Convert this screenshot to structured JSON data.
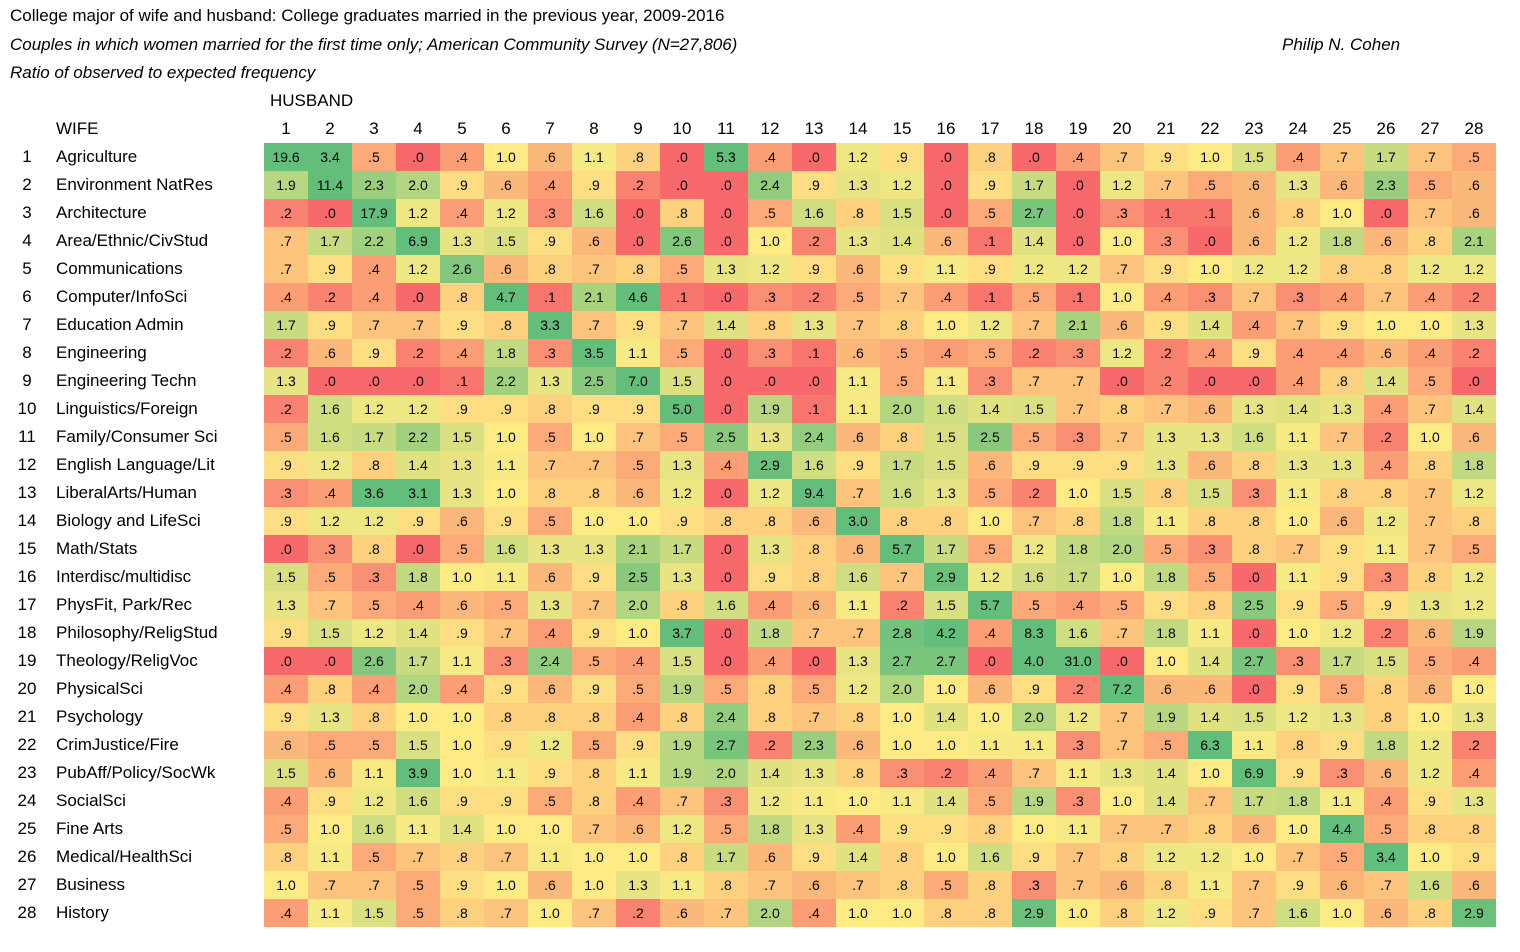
{
  "header": {
    "title": "College major of wife and husband: College graduates married in the previous year, 2009-2016",
    "subtitle": "Couples in which women married for the first time only; American Community Survey (N=27,806)",
    "subtitle2": "Ratio of observed to expected frequency",
    "author": "Philip N. Cohen"
  },
  "chart_data": {
    "type": "heatmap",
    "column_axis_label": "HUSBAND",
    "row_axis_label": "WIFE",
    "columns": [
      "1",
      "2",
      "3",
      "4",
      "5",
      "6",
      "7",
      "8",
      "9",
      "10",
      "11",
      "12",
      "13",
      "14",
      "15",
      "16",
      "17",
      "18",
      "19",
      "20",
      "21",
      "22",
      "23",
      "24",
      "25",
      "26",
      "27",
      "28"
    ],
    "row_numbers": [
      "1",
      "2",
      "3",
      "4",
      "5",
      "6",
      "7",
      "8",
      "9",
      "10",
      "11",
      "12",
      "13",
      "14",
      "15",
      "16",
      "17",
      "18",
      "19",
      "20",
      "21",
      "22",
      "23",
      "24",
      "25",
      "26",
      "27",
      "28"
    ],
    "rows": [
      "Agriculture",
      "Environment NatRes",
      "Architecture",
      "Area/Ethnic/CivStud",
      "Communications",
      "Computer/InfoSci",
      "Education Admin",
      "Engineering",
      "Engineering Techn",
      "Linguistics/Foreign",
      "Family/Consumer Sci",
      "English Language/Lit",
      "LiberalArts/Human",
      "Biology and LifeSci",
      "Math/Stats",
      "Interdisc/multidisc",
      "PhysFit, Park/Rec",
      "Philosophy/ReligStud",
      "Theology/ReligVoc",
      "PhysicalSci",
      "Psychology",
      "CrimJustice/Fire",
      "PubAff/Policy/SocWk",
      "SocialSci",
      "Fine Arts",
      "Medical/HealthSci",
      "Business",
      "History"
    ],
    "values": [
      [
        "19.6",
        "3.4",
        ".5",
        ".0",
        ".4",
        "1.0",
        ".6",
        "1.1",
        ".8",
        ".0",
        "5.3",
        ".4",
        ".0",
        "1.2",
        ".9",
        ".0",
        ".8",
        ".0",
        ".4",
        ".7",
        ".9",
        "1.0",
        "1.5",
        ".4",
        ".7",
        "1.7",
        ".7",
        ".5"
      ],
      [
        "1.9",
        "11.4",
        "2.3",
        "2.0",
        ".9",
        ".6",
        ".4",
        ".9",
        ".2",
        ".0",
        ".0",
        "2.4",
        ".9",
        "1.3",
        "1.2",
        ".0",
        ".9",
        "1.7",
        ".0",
        "1.2",
        ".7",
        ".5",
        ".6",
        "1.3",
        ".6",
        "2.3",
        ".5",
        ".6"
      ],
      [
        ".2",
        ".0",
        "17.9",
        "1.2",
        ".4",
        "1.2",
        ".3",
        "1.6",
        ".0",
        ".8",
        ".0",
        ".5",
        "1.6",
        ".8",
        "1.5",
        ".0",
        ".5",
        "2.7",
        ".0",
        ".3",
        ".1",
        ".1",
        ".6",
        ".8",
        "1.0",
        ".0",
        ".7",
        ".6"
      ],
      [
        ".7",
        "1.7",
        "2.2",
        "6.9",
        "1.3",
        "1.5",
        ".9",
        ".6",
        ".0",
        "2.6",
        ".0",
        "1.0",
        ".2",
        "1.3",
        "1.4",
        ".6",
        ".1",
        "1.4",
        ".0",
        "1.0",
        ".3",
        ".0",
        ".6",
        "1.2",
        "1.8",
        ".6",
        ".8",
        "2.1"
      ],
      [
        ".7",
        ".9",
        ".4",
        "1.2",
        "2.6",
        ".6",
        ".8",
        ".7",
        ".8",
        ".5",
        "1.3",
        "1.2",
        ".9",
        ".6",
        ".9",
        "1.1",
        ".9",
        "1.2",
        "1.2",
        ".7",
        ".9",
        "1.0",
        "1.2",
        "1.2",
        ".8",
        ".8",
        "1.2",
        "1.2"
      ],
      [
        ".4",
        ".2",
        ".4",
        ".0",
        ".8",
        "4.7",
        ".1",
        "2.1",
        "4.6",
        ".1",
        ".0",
        ".3",
        ".2",
        ".5",
        ".7",
        ".4",
        ".1",
        ".5",
        ".1",
        "1.0",
        ".4",
        ".3",
        ".7",
        ".3",
        ".4",
        ".7",
        ".4",
        ".2"
      ],
      [
        "1.7",
        ".9",
        ".7",
        ".7",
        ".9",
        ".8",
        "3.3",
        ".7",
        ".9",
        ".7",
        "1.4",
        ".8",
        "1.3",
        ".7",
        ".8",
        "1.0",
        "1.2",
        ".7",
        "2.1",
        ".6",
        ".9",
        "1.4",
        ".4",
        ".7",
        ".9",
        "1.0",
        "1.0",
        "1.3"
      ],
      [
        ".2",
        ".6",
        ".9",
        ".2",
        ".4",
        "1.8",
        ".3",
        "3.5",
        "1.1",
        ".5",
        ".0",
        ".3",
        ".1",
        ".6",
        ".5",
        ".4",
        ".5",
        ".2",
        ".3",
        "1.2",
        ".2",
        ".4",
        ".9",
        ".4",
        ".4",
        ".6",
        ".4",
        ".2"
      ],
      [
        "1.3",
        ".0",
        ".0",
        ".0",
        ".1",
        "2.2",
        "1.3",
        "2.5",
        "7.0",
        "1.5",
        ".0",
        ".0",
        ".0",
        "1.1",
        ".5",
        "1.1",
        ".3",
        ".7",
        ".7",
        ".0",
        ".2",
        ".0",
        ".0",
        ".4",
        ".8",
        "1.4",
        ".5",
        ".0"
      ],
      [
        ".2",
        "1.6",
        "1.2",
        "1.2",
        ".9",
        ".9",
        ".8",
        ".9",
        ".9",
        "5.0",
        ".0",
        "1.9",
        ".1",
        "1.1",
        "2.0",
        "1.6",
        "1.4",
        "1.5",
        ".7",
        ".8",
        ".7",
        ".6",
        "1.3",
        "1.4",
        "1.3",
        ".4",
        ".7",
        "1.4"
      ],
      [
        ".5",
        "1.6",
        "1.7",
        "2.2",
        "1.5",
        "1.0",
        ".5",
        "1.0",
        ".7",
        ".5",
        "2.5",
        "1.3",
        "2.4",
        ".6",
        ".8",
        "1.5",
        "2.5",
        ".5",
        ".3",
        ".7",
        "1.3",
        "1.3",
        "1.6",
        "1.1",
        ".7",
        ".2",
        "1.0",
        ".6"
      ],
      [
        ".9",
        "1.2",
        ".8",
        "1.4",
        "1.3",
        "1.1",
        ".7",
        ".7",
        ".5",
        "1.3",
        ".4",
        "2.9",
        "1.6",
        ".9",
        "1.7",
        "1.5",
        ".6",
        ".9",
        ".9",
        ".9",
        "1.3",
        ".6",
        ".8",
        "1.3",
        "1.3",
        ".4",
        ".8",
        "1.8"
      ],
      [
        ".3",
        ".4",
        "3.6",
        "3.1",
        "1.3",
        "1.0",
        ".8",
        ".8",
        ".6",
        "1.2",
        ".0",
        "1.2",
        "9.4",
        ".7",
        "1.6",
        "1.3",
        ".5",
        ".2",
        "1.0",
        "1.5",
        ".8",
        "1.5",
        ".3",
        "1.1",
        ".8",
        ".8",
        ".7",
        "1.2"
      ],
      [
        ".9",
        "1.2",
        "1.2",
        ".9",
        ".6",
        ".9",
        ".5",
        "1.0",
        "1.0",
        ".9",
        ".8",
        ".8",
        ".6",
        "3.0",
        ".8",
        ".8",
        "1.0",
        ".7",
        ".8",
        "1.8",
        "1.1",
        ".8",
        ".8",
        "1.0",
        ".6",
        "1.2",
        ".7",
        ".8"
      ],
      [
        ".0",
        ".3",
        ".8",
        ".0",
        ".5",
        "1.6",
        "1.3",
        "1.3",
        "2.1",
        "1.7",
        ".0",
        "1.3",
        ".8",
        ".6",
        "5.7",
        "1.7",
        ".5",
        "1.2",
        "1.8",
        "2.0",
        ".5",
        ".3",
        ".8",
        ".7",
        ".9",
        "1.1",
        ".7",
        ".5"
      ],
      [
        "1.5",
        ".5",
        ".3",
        "1.8",
        "1.0",
        "1.1",
        ".6",
        ".9",
        "2.5",
        "1.3",
        ".0",
        ".9",
        ".8",
        "1.6",
        ".7",
        "2.9",
        "1.2",
        "1.6",
        "1.7",
        "1.0",
        "1.8",
        ".5",
        ".0",
        "1.1",
        ".9",
        ".3",
        ".8",
        "1.2"
      ],
      [
        "1.3",
        ".7",
        ".5",
        ".4",
        ".6",
        ".5",
        "1.3",
        ".7",
        "2.0",
        ".8",
        "1.6",
        ".4",
        ".6",
        "1.1",
        ".2",
        "1.5",
        "5.7",
        ".5",
        ".4",
        ".5",
        ".9",
        ".8",
        "2.5",
        ".9",
        ".5",
        ".9",
        "1.3",
        "1.2"
      ],
      [
        ".9",
        "1.5",
        "1.2",
        "1.4",
        ".9",
        ".7",
        ".4",
        ".9",
        "1.0",
        "3.7",
        ".0",
        "1.8",
        ".7",
        ".7",
        "2.8",
        "4.2",
        ".4",
        "8.3",
        "1.6",
        ".7",
        "1.8",
        "1.1",
        ".0",
        "1.0",
        "1.2",
        ".2",
        ".6",
        "1.9"
      ],
      [
        ".0",
        ".0",
        "2.6",
        "1.7",
        "1.1",
        ".3",
        "2.4",
        ".5",
        ".4",
        "1.5",
        ".0",
        ".4",
        ".0",
        "1.3",
        "2.7",
        "2.7",
        ".0",
        "4.0",
        "31.0",
        ".0",
        "1.0",
        "1.4",
        "2.7",
        ".3",
        "1.7",
        "1.5",
        ".5",
        ".4"
      ],
      [
        ".4",
        ".8",
        ".4",
        "2.0",
        ".4",
        ".9",
        ".6",
        ".9",
        ".5",
        "1.9",
        ".5",
        ".8",
        ".5",
        "1.2",
        "2.0",
        "1.0",
        ".6",
        ".9",
        ".2",
        "7.2",
        ".6",
        ".6",
        ".0",
        ".9",
        ".5",
        ".8",
        ".6",
        "1.0"
      ],
      [
        ".9",
        "1.3",
        ".8",
        "1.0",
        "1.0",
        ".8",
        ".8",
        ".8",
        ".4",
        ".8",
        "2.4",
        ".8",
        ".7",
        ".8",
        "1.0",
        "1.4",
        "1.0",
        "2.0",
        "1.2",
        ".7",
        "1.9",
        "1.4",
        "1.5",
        "1.2",
        "1.3",
        ".8",
        "1.0",
        "1.3"
      ],
      [
        ".6",
        ".5",
        ".5",
        "1.5",
        "1.0",
        ".9",
        "1.2",
        ".5",
        ".9",
        "1.9",
        "2.7",
        ".2",
        "2.3",
        ".6",
        "1.0",
        "1.0",
        "1.1",
        "1.1",
        ".3",
        ".7",
        ".5",
        "6.3",
        "1.1",
        ".8",
        ".9",
        "1.8",
        "1.2",
        ".2"
      ],
      [
        "1.5",
        ".6",
        "1.1",
        "3.9",
        "1.0",
        "1.1",
        ".9",
        ".8",
        "1.1",
        "1.9",
        "2.0",
        "1.4",
        "1.3",
        ".8",
        ".3",
        ".2",
        ".4",
        ".7",
        "1.1",
        "1.3",
        "1.4",
        "1.0",
        "6.9",
        ".9",
        ".3",
        ".6",
        "1.2",
        ".4"
      ],
      [
        ".4",
        ".9",
        "1.2",
        "1.6",
        ".9",
        ".9",
        ".5",
        ".8",
        ".4",
        ".7",
        ".3",
        "1.2",
        "1.1",
        "1.0",
        "1.1",
        "1.4",
        ".5",
        "1.9",
        ".3",
        "1.0",
        "1.4",
        ".7",
        "1.7",
        "1.8",
        "1.1",
        ".4",
        ".9",
        "1.3"
      ],
      [
        ".5",
        "1.0",
        "1.6",
        "1.1",
        "1.4",
        "1.0",
        "1.0",
        ".7",
        ".6",
        "1.2",
        ".5",
        "1.8",
        "1.3",
        ".4",
        ".9",
        ".9",
        ".8",
        "1.0",
        "1.1",
        ".7",
        ".7",
        ".8",
        ".6",
        "1.0",
        "4.4",
        ".5",
        ".8",
        ".8"
      ],
      [
        ".8",
        "1.1",
        ".5",
        ".7",
        ".8",
        ".7",
        "1.1",
        "1.0",
        "1.0",
        ".8",
        "1.7",
        ".6",
        ".9",
        "1.4",
        ".8",
        "1.0",
        "1.6",
        ".9",
        ".7",
        ".8",
        "1.2",
        "1.2",
        "1.0",
        ".7",
        ".5",
        "3.4",
        "1.0",
        ".9"
      ],
      [
        "1.0",
        ".7",
        ".7",
        ".5",
        ".9",
        "1.0",
        ".6",
        "1.0",
        "1.3",
        "1.1",
        ".8",
        ".7",
        ".6",
        ".7",
        ".8",
        ".5",
        ".8",
        ".3",
        ".7",
        ".6",
        ".8",
        "1.1",
        ".7",
        ".9",
        ".6",
        ".7",
        "1.6",
        ".6"
      ],
      [
        ".4",
        "1.1",
        "1.5",
        ".5",
        ".8",
        ".7",
        "1.0",
        ".7",
        ".2",
        ".6",
        ".7",
        "2.0",
        ".4",
        "1.0",
        "1.0",
        ".8",
        ".8",
        "2.9",
        "1.0",
        ".8",
        "1.2",
        ".9",
        ".7",
        "1.6",
        "1.0",
        ".6",
        ".8",
        "2.9"
      ]
    ],
    "color_scale": {
      "low": "#f8696b",
      "mid": "#ffeb84",
      "high": "#63be7b"
    }
  }
}
